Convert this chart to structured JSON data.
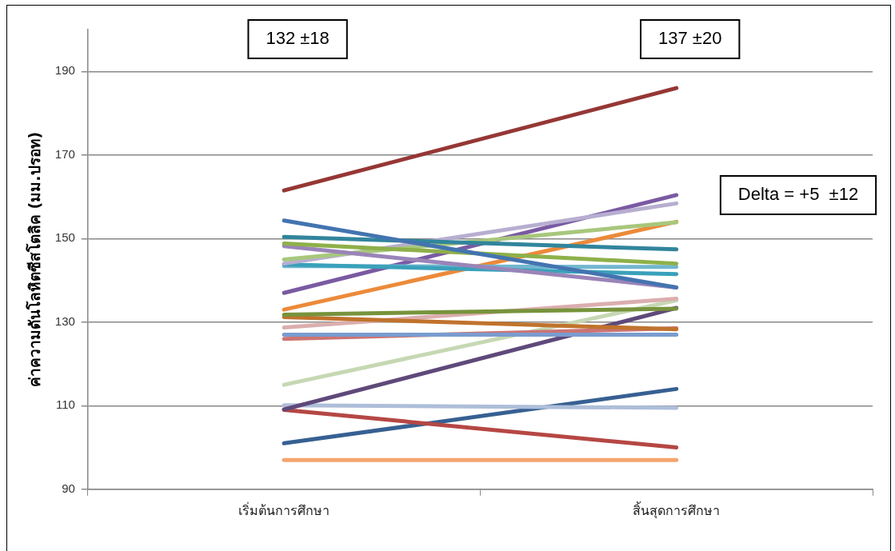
{
  "chart_data": {
    "type": "line",
    "ylabel": "ค่าความดันโลหิตซีสโตลิค (มม.ปรอท)",
    "categories": [
      "เริ่มต้นการศึกษา",
      "สิ้นสุดการศึกษา"
    ],
    "ylim": [
      90,
      200
    ],
    "yticks": [
      90,
      110,
      130,
      150,
      170,
      190
    ],
    "grid": "y",
    "legend": false,
    "marker": "none",
    "line_style": "solid",
    "annotations": [
      "132 ±18",
      "137 ±20",
      "Delta = +5  ±12"
    ],
    "series": [
      {
        "color": "#953735",
        "values": [
          161.5,
          186
        ]
      },
      {
        "color": "#4374b0",
        "values": [
          154.3,
          138.3
        ]
      },
      {
        "color": "#31859c",
        "values": [
          150.4,
          147.4
        ]
      },
      {
        "color": "#8eb04a",
        "values": [
          148.8,
          144
        ]
      },
      {
        "color": "#9a84b8",
        "values": [
          148.2,
          138.3
        ]
      },
      {
        "color": "#a8c77c",
        "values": [
          145,
          153.9
        ]
      },
      {
        "color": "#b7aed0",
        "values": [
          144,
          158.4
        ]
      },
      {
        "color": "#3aa1bb",
        "values": [
          143.8,
          141.5
        ]
      },
      {
        "color": "#72b6cf",
        "values": [
          143.4,
          143.2
        ]
      },
      {
        "color": "#7a5aa2",
        "values": [
          137,
          160.4
        ]
      },
      {
        "color": "#ec8a3a",
        "values": [
          133,
          154
        ]
      },
      {
        "color": "#77933c",
        "values": [
          131.8,
          133.2
        ]
      },
      {
        "color": "#c0732d",
        "values": [
          131.2,
          128.3
        ]
      },
      {
        "color": "#dbaeae",
        "values": [
          128.7,
          135.6
        ]
      },
      {
        "color": "#7a9ccf",
        "values": [
          127,
          127
        ]
      },
      {
        "color": "#cc7474",
        "values": [
          126,
          128.5
        ]
      },
      {
        "color": "#c6d8b3",
        "values": [
          115,
          135.2
        ]
      },
      {
        "color": "#5f497a",
        "values": [
          109.1,
          133.4
        ]
      },
      {
        "color": "#aebed9",
        "values": [
          110.1,
          109.5
        ]
      },
      {
        "color": "#b54744",
        "values": [
          109,
          100
        ]
      },
      {
        "color": "#376092",
        "values": [
          101,
          114
        ]
      },
      {
        "color": "#f5a46e",
        "values": [
          97,
          97
        ]
      }
    ]
  }
}
